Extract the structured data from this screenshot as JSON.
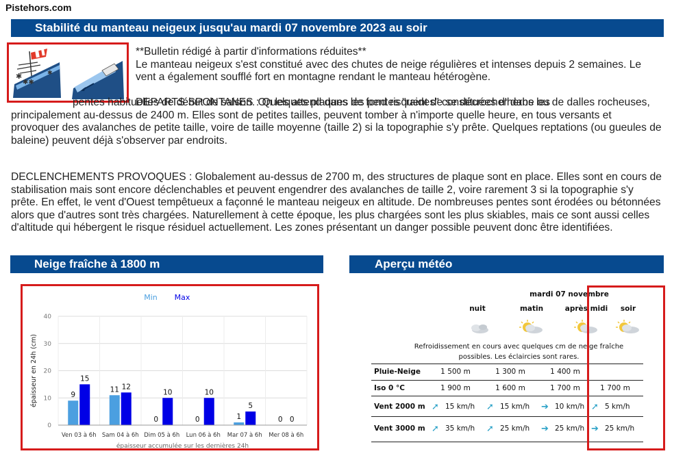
{
  "site": {
    "name": "Pistehors.com"
  },
  "bulletin": {
    "title": "Stabilité du manteau neigeux jusqu'au mardi 07 novembre 2023 au soir",
    "intro_note": "**Bulletin rédigé à partir d'informations réduites**",
    "intro_text": "Le manteau neigeux s'est constitué avec des chutes de neige régulières et intenses depuis 2 semaines. Le vent a également soufflé fort en montagne rendant le manteau hétérogène.",
    "spontaneous_line1": "DEPARTS SPONTANES : Quelques plaques de fond risquent de se décrocher dans les",
    "spontaneous_rest": "pentes habituelles de début de saison. On les attend dans les pentes \"raides\" constituées d'herbe ou de dalles rocheuses, principalement au-dessus de 2400 m. Elles sont de petites tailles, peuvent tomber à n'importe quelle heure, en tous versants et provoquer des avalanches de petite taille, voire de taille moyenne (taille 2) si la topographie s'y prête. Quelques reptations (ou gueules de baleine) peuvent déjà s'observer par endroits.",
    "provoked_text": "DECLENCHEMENTS PROVOQUES : Globalement au-dessus de 2700 m, des structures de plaque sont en place. Elles sont en cours de stabilisation mais sont encore déclenchables et peuvent engendrer des avalanches de taille 2, voire rarement 3 si la topographie s'y prête. En effet, le vent d'Ouest tempêtueux a façonné le manteau neigeux en altitude. De nombreuses pentes sont érodées ou bétonnées alors que d'autres sont très chargées. Naturellement à cette époque, les plus chargées sont les plus skiables, mais ce sont aussi celles d'altitude qui hébergent le risque résiduel actuellement. Les zones présentant un danger possible peuvent donc être identifiées.",
    "icons": [
      "windsock-snow-icon",
      "wind-slab-slope-icon"
    ]
  },
  "snow_section": {
    "title": "Neige fraîche à 1800 m"
  },
  "meteo_section": {
    "title": "Aperçu météo"
  },
  "chart_data": {
    "type": "bar",
    "ylabel": "épaisseur en 24h (cm)",
    "xlabel": "épaisseur accumulée sur les dernières 24h",
    "ylim": [
      0,
      40
    ],
    "yticks": [
      0,
      10,
      20,
      30,
      40
    ],
    "legend_position": "top-center",
    "grid": true,
    "categories": [
      "Ven 03 à 6h",
      "Sam 04 à 6h",
      "Dim 05 à 6h",
      "Lun 06 à 6h",
      "Mar 07 à 6h",
      "Mer 08 à 6h"
    ],
    "series": [
      {
        "name": "Min",
        "color": "#4b9fe0",
        "values": [
          9,
          11,
          0,
          0,
          1,
          0
        ]
      },
      {
        "name": "Max",
        "color": "#0000e6",
        "values": [
          15,
          12,
          10,
          10,
          5,
          0
        ]
      }
    ]
  },
  "meteo": {
    "date": "mardi 07 novembre",
    "periods": [
      {
        "label": "nuit",
        "icon": "cloudy-night-icon"
      },
      {
        "label": "matin",
        "icon": "sun-clouds-icon"
      },
      {
        "label": "après midi",
        "icon": "sun-clouds-icon"
      },
      {
        "label": "soir",
        "icon": "sun-clouds-icon"
      }
    ],
    "comment": "Refroidissement en cours avec quelques cm de neige fraîche possibles. Les éclaircies sont rares.",
    "rows": [
      {
        "label": "Pluie-Neige",
        "values": [
          "1 500 m",
          "1 300 m",
          "1 400 m",
          ""
        ]
      },
      {
        "label": "Iso 0 °C",
        "values": [
          "1 900 m",
          "1 600 m",
          "1 700 m",
          "1 700 m"
        ]
      },
      {
        "label": "Vent 2000 m",
        "values": [
          "15 km/h",
          "15 km/h",
          "10 km/h",
          "5 km/h"
        ],
        "arrows": [
          "ne",
          "ne",
          "e",
          "ne"
        ]
      },
      {
        "label": "Vent 3000 m",
        "values": [
          "35 km/h",
          "25 km/h",
          "25 km/h",
          "25 km/h"
        ],
        "arrows": [
          "ne",
          "ne",
          "e",
          "e"
        ]
      }
    ],
    "highlight_color": "#d61b1b"
  }
}
